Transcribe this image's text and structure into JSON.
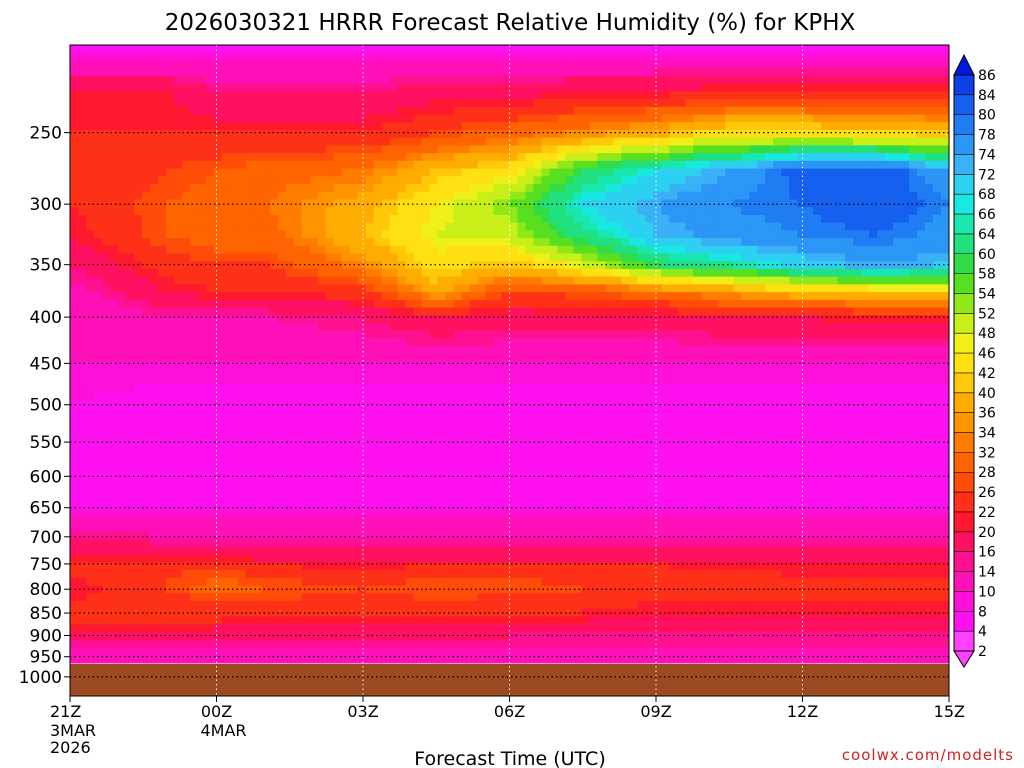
{
  "title": "2026030321 HRRR Forecast Relative Humidity (%) for KPHX",
  "xlabel": "Forecast Time (UTC)",
  "credit": "coolwx.com/modelts",
  "colors": {
    "credit": "#d42020",
    "ground": "#9b4a22",
    "grid": "#000000"
  },
  "chart_data": {
    "type": "heatmap",
    "title": "2026030321 HRRR Forecast Relative Humidity (%) for KPHX",
    "xlabel": "Forecast Time (UTC)",
    "ylabel": "",
    "x_ticks": [
      {
        "hour": 0,
        "label": "21Z",
        "sub": [
          "3MAR",
          "2026"
        ]
      },
      {
        "hour": 3,
        "label": "00Z",
        "sub": [
          "4MAR"
        ]
      },
      {
        "hour": 6,
        "label": "03Z",
        "sub": []
      },
      {
        "hour": 9,
        "label": "06Z",
        "sub": []
      },
      {
        "hour": 12,
        "label": "09Z",
        "sub": []
      },
      {
        "hour": 15,
        "label": "12Z",
        "sub": []
      },
      {
        "hour": 18,
        "label": "15Z",
        "sub": []
      }
    ],
    "xlim": [
      0,
      18
    ],
    "y_ticks": [
      250,
      300,
      350,
      400,
      450,
      500,
      550,
      600,
      650,
      700,
      750,
      800,
      850,
      900,
      950,
      1000
    ],
    "ylim": [
      200,
      1050
    ],
    "y_scale": "log-pressure",
    "surface_pressure_hPa": 965,
    "legend_levels": [
      86,
      84,
      80,
      78,
      74,
      72,
      68,
      66,
      64,
      60,
      58,
      54,
      52,
      48,
      46,
      42,
      40,
      36,
      34,
      32,
      28,
      26,
      22,
      20,
      16,
      14,
      10,
      8,
      4,
      2
    ],
    "legend_colors": [
      "#0018e0",
      "#0c40e8",
      "#1660ef",
      "#1f7cf3",
      "#2c96f6",
      "#3ab0f6",
      "#2cd0f0",
      "#18e8e0",
      "#18e8b0",
      "#20e080",
      "#30dc48",
      "#58e020",
      "#90e818",
      "#c8f018",
      "#f0f018",
      "#ffe010",
      "#ffc808",
      "#ffac00",
      "#ff9400",
      "#ff7c00",
      "#ff6400",
      "#ff4c08",
      "#ff3018",
      "#ff1830",
      "#ff1060",
      "#ff1090",
      "#ff10b8",
      "#ff10d8",
      "#ff10f0",
      "#ff40ff"
    ],
    "legend_position": "right",
    "grid": true,
    "rh_profiles": {
      "pressure_hPa": [
        200,
        225,
        250,
        275,
        300,
        325,
        350,
        375,
        400,
        450,
        500,
        550,
        600,
        650,
        700,
        725,
        750,
        775,
        800,
        825,
        850,
        900,
        950
      ],
      "times_hour": [
        0,
        2,
        3,
        4,
        6,
        7.5,
        9,
        10.5,
        12,
        13.5,
        15,
        16.5,
        18
      ],
      "rh": [
        [
          6,
          20,
          22,
          22,
          22,
          20,
          16,
          12,
          10,
          10,
          8,
          8,
          8,
          8,
          16,
          18,
          24,
          22,
          20,
          22,
          26,
          18,
          12
        ],
        [
          6,
          20,
          22,
          26,
          28,
          28,
          24,
          20,
          14,
          10,
          6,
          4,
          6,
          8,
          14,
          18,
          24,
          26,
          26,
          24,
          26,
          18,
          12
        ],
        [
          6,
          16,
          22,
          28,
          30,
          30,
          26,
          22,
          14,
          10,
          6,
          4,
          6,
          8,
          14,
          18,
          24,
          28,
          30,
          26,
          24,
          18,
          12
        ],
        [
          6,
          16,
          22,
          30,
          32,
          30,
          26,
          22,
          14,
          10,
          6,
          4,
          6,
          8,
          14,
          16,
          22,
          26,
          28,
          26,
          22,
          18,
          12
        ],
        [
          6,
          16,
          22,
          32,
          38,
          40,
          34,
          24,
          16,
          10,
          6,
          4,
          4,
          8,
          14,
          16,
          20,
          24,
          26,
          24,
          22,
          18,
          12
        ],
        [
          6,
          18,
          26,
          40,
          46,
          48,
          44,
          38,
          20,
          10,
          6,
          4,
          4,
          8,
          14,
          16,
          22,
          26,
          28,
          26,
          22,
          18,
          12
        ],
        [
          6,
          18,
          30,
          44,
          54,
          50,
          40,
          26,
          18,
          10,
          6,
          4,
          4,
          8,
          14,
          16,
          22,
          26,
          28,
          24,
          22,
          16,
          12
        ],
        [
          6,
          20,
          34,
          60,
          68,
          62,
          48,
          28,
          18,
          10,
          6,
          4,
          4,
          8,
          14,
          16,
          22,
          24,
          26,
          24,
          22,
          16,
          12
        ],
        [
          6,
          20,
          38,
          68,
          74,
          72,
          60,
          32,
          18,
          10,
          6,
          4,
          4,
          8,
          14,
          16,
          22,
          24,
          26,
          22,
          20,
          16,
          12
        ],
        [
          6,
          22,
          44,
          74,
          78,
          76,
          64,
          36,
          20,
          10,
          6,
          4,
          4,
          8,
          14,
          16,
          20,
          24,
          24,
          22,
          20,
          16,
          12
        ],
        [
          6,
          22,
          44,
          82,
          80,
          78,
          70,
          40,
          20,
          10,
          6,
          4,
          4,
          8,
          14,
          16,
          20,
          22,
          22,
          22,
          20,
          16,
          12
        ],
        [
          6,
          22,
          42,
          84,
          84,
          80,
          74,
          42,
          22,
          10,
          6,
          4,
          4,
          8,
          14,
          16,
          20,
          22,
          22,
          22,
          20,
          16,
          12
        ],
        [
          6,
          22,
          40,
          74,
          78,
          76,
          72,
          42,
          22,
          10,
          6,
          4,
          4,
          8,
          14,
          16,
          20,
          22,
          22,
          22,
          20,
          16,
          12
        ]
      ]
    }
  }
}
